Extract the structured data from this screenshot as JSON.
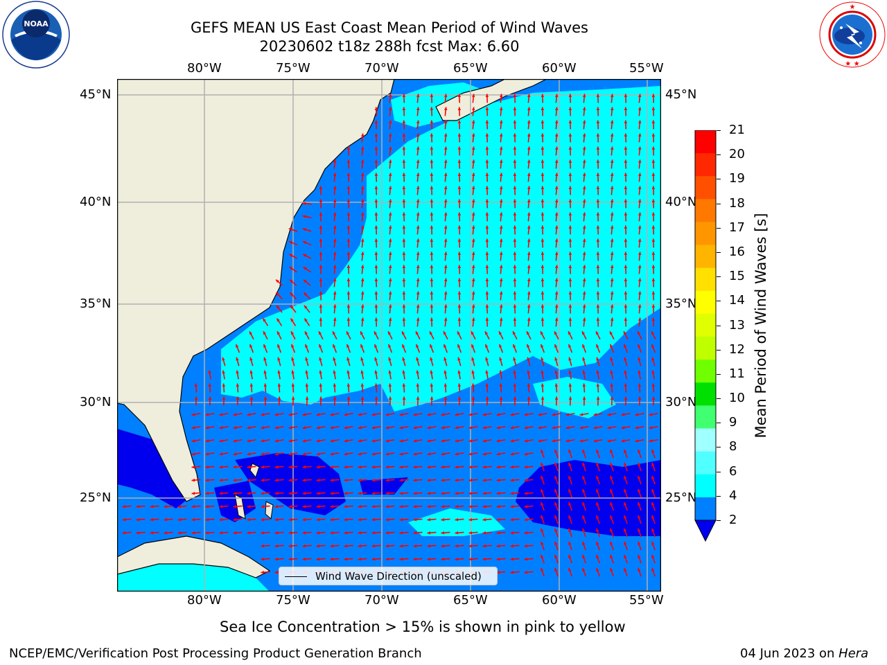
{
  "header": {
    "title_line1": "GEFS MEAN US East Coast Mean Period of Wind Waves",
    "title_line2": "20230602 t18z 288h fcst   Max: 6.60"
  },
  "logos": {
    "left": {
      "name": "noaa-logo",
      "text": "NOAA"
    },
    "right": {
      "name": "national-weather-service-logo",
      "text": "NATIONAL WEATHER SERVICE"
    }
  },
  "map": {
    "longitude_labels": [
      "80°W",
      "75°W",
      "70°W",
      "65°W",
      "60°W",
      "55°W"
    ],
    "latitude_labels": [
      "45°N",
      "40°N",
      "35°N",
      "30°N",
      "25°N"
    ],
    "land_color": "#efeddc",
    "water_colors": {
      "dark_blue": "#0000ee",
      "blue": "#0080ff",
      "cyan": "#00ffff"
    },
    "arrow_color": "#ff0000",
    "legend_label": "Wind Wave Direction (unscaled)"
  },
  "colorbar": {
    "label": "Mean Period of Wind Waves [s]",
    "ticks": [
      "21",
      "20",
      "19",
      "18",
      "17",
      "16",
      "15",
      "14",
      "13",
      "12",
      "11",
      "10",
      "9",
      "8",
      "6",
      "4",
      "2"
    ],
    "colors": [
      "#ff0000",
      "#ff2800",
      "#ff5000",
      "#ff7800",
      "#ff9600",
      "#ffb400",
      "#ffe000",
      "#ffff00",
      "#e0ff00",
      "#c0ff00",
      "#70ff00",
      "#00e000",
      "#40ff70",
      "#a0ffff",
      "#50ffff",
      "#00ffff",
      "#0080ff"
    ],
    "extend_color": "#0000ee"
  },
  "notes": {
    "sea_ice": "Sea Ice Concentration > 15% is shown in pink to yellow",
    "credit": "NCEP/EMC/Verification Post Processing Product Generation Branch",
    "date": "04 Jun 2023 on ",
    "machine": "Hera"
  }
}
